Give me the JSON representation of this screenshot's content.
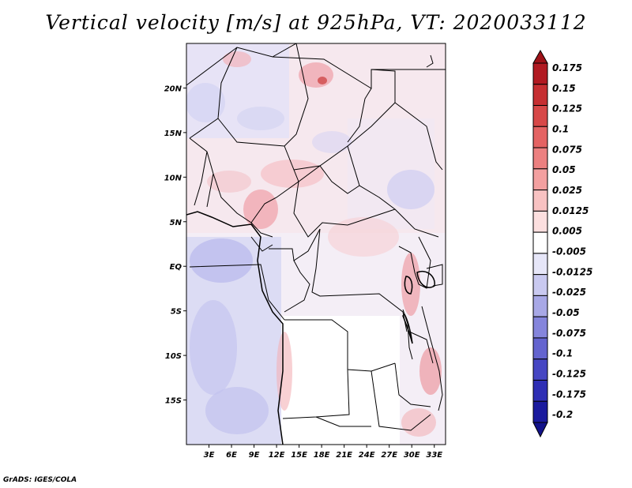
{
  "title": "Vertical velocity [m/s] at 925hPa, VT: 2020033112",
  "footer": "GrADS: IGES/COLA",
  "map": {
    "lat_labels": [
      "20N",
      "15N",
      "10N",
      "5N",
      "EQ",
      "5S",
      "10S",
      "15S"
    ],
    "lat_values": [
      20,
      15,
      10,
      5,
      0,
      -5,
      -10,
      -15
    ],
    "lon_labels": [
      "3E",
      "6E",
      "9E",
      "12E",
      "15E",
      "18E",
      "21E",
      "24E",
      "27E",
      "30E",
      "33E"
    ],
    "lon_values": [
      3,
      6,
      9,
      12,
      15,
      18,
      21,
      24,
      27,
      30,
      33
    ],
    "lon_range": [
      0,
      34.5
    ],
    "lat_range": [
      -20,
      25
    ]
  },
  "colorbar": {
    "labels": [
      "0.175",
      "0.15",
      "0.125",
      "0.1",
      "0.075",
      "0.05",
      "0.025",
      "0.0125",
      "0.005",
      "-0.005",
      "-0.0125",
      "-0.025",
      "-0.05",
      "-0.075",
      "-0.1",
      "-0.125",
      "-0.175",
      "-0.2"
    ],
    "colors": [
      "#b11a22",
      "#c62f32",
      "#d74848",
      "#e46363",
      "#ec8080",
      "#f3a0a0",
      "#f8c2c2",
      "#fcdfdf",
      "#ffffff",
      "#e6e6f8",
      "#c9c9f0",
      "#a8a8e6",
      "#8585dc",
      "#6464cf",
      "#4646c3",
      "#2e2eb4",
      "#1a1a9e"
    ],
    "top_color": "#9e1218",
    "bottom_color": "#12128a"
  }
}
